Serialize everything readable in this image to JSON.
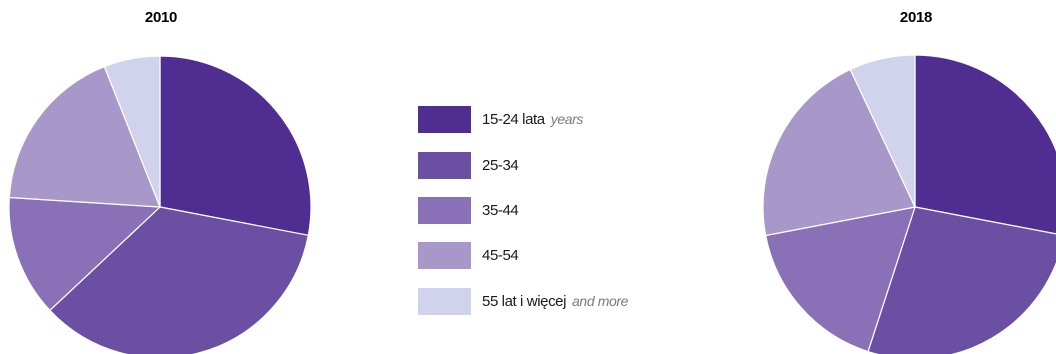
{
  "chart_data": [
    {
      "type": "pie",
      "title": "2010",
      "slices": [
        {
          "label": "15-24 lata",
          "value": 28,
          "color": "#502d91"
        },
        {
          "label": "25-34",
          "value": 35,
          "color": "#6b4fa3"
        },
        {
          "label": "35-44",
          "value": 13,
          "color": "#8a71b7"
        },
        {
          "label": "45-54",
          "value": 18,
          "color": "#a898c9"
        },
        {
          "label": "55 lat i więcej",
          "value": 6,
          "color": "#d0d3eb"
        }
      ]
    },
    {
      "type": "pie",
      "title": "2018",
      "slices": [
        {
          "label": "15-24 lata",
          "value": 28,
          "color": "#502d91"
        },
        {
          "label": "25-34",
          "value": 27,
          "color": "#6b4fa3"
        },
        {
          "label": "35-44",
          "value": 17,
          "color": "#8a71b7"
        },
        {
          "label": "45-54",
          "value": 21,
          "color": "#a898c9"
        },
        {
          "label": "55 lat i więcej",
          "value": 7,
          "color": "#d0d3eb"
        }
      ]
    }
  ],
  "legend": [
    {
      "label": "15-24 lata",
      "label_en": "years",
      "color": "#502d91"
    },
    {
      "label": "25-34",
      "label_en": "",
      "color": "#6b4fa3"
    },
    {
      "label": "35-44",
      "label_en": "",
      "color": "#8a71b7"
    },
    {
      "label": "45-54",
      "label_en": "",
      "color": "#a898c9"
    },
    {
      "label": "55 lat i więcej",
      "label_en": "and more",
      "color": "#d0d3eb"
    }
  ]
}
